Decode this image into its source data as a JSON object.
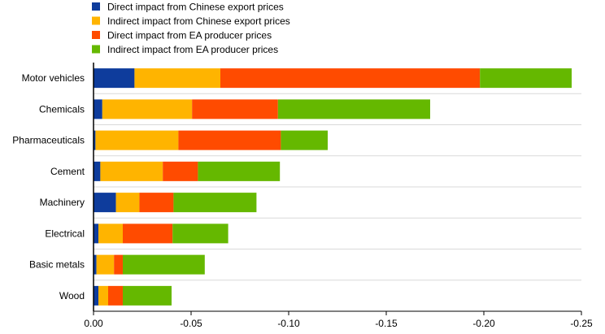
{
  "chart_data": {
    "type": "bar",
    "orientation": "horizontal",
    "stacked": true,
    "title": "",
    "xlabel": "",
    "ylabel": "",
    "categories": [
      "Motor vehicles",
      "Chemicals",
      "Pharmaceuticals",
      "Cement",
      "Machinery",
      "Electrical",
      "Basic metals",
      "Wood"
    ],
    "series": [
      {
        "name": "Direct impact from Chinese export prices",
        "color": "#0e3c9c",
        "values": [
          -0.021,
          -0.0045,
          -0.001,
          -0.0035,
          -0.0115,
          -0.0025,
          -0.0015,
          -0.0025
        ]
      },
      {
        "name": "Indirect impact from Chinese export prices",
        "color": "#ffb400",
        "values": [
          -0.044,
          -0.046,
          -0.0425,
          -0.032,
          -0.012,
          -0.0125,
          -0.009,
          -0.005
        ]
      },
      {
        "name": "Direct impact from EA producer prices",
        "color": "#ff4b00",
        "values": [
          -0.133,
          -0.044,
          -0.0525,
          -0.018,
          -0.0175,
          -0.0255,
          -0.0045,
          -0.0075
        ]
      },
      {
        "name": "Indirect impact from EA producer prices",
        "color": "#65b800",
        "values": [
          -0.047,
          -0.078,
          -0.024,
          -0.042,
          -0.0425,
          -0.0285,
          -0.042,
          -0.025
        ]
      }
    ],
    "xlim": [
      0,
      -0.25
    ],
    "xticks": [
      0,
      -0.05,
      -0.1,
      -0.15,
      -0.2,
      -0.25
    ],
    "xtick_labels": [
      "0.00",
      "-0.05",
      "-0.10",
      "-0.15",
      "-0.20",
      "-0.25"
    ],
    "grid": "horizontal separators",
    "legend": "top-left"
  }
}
